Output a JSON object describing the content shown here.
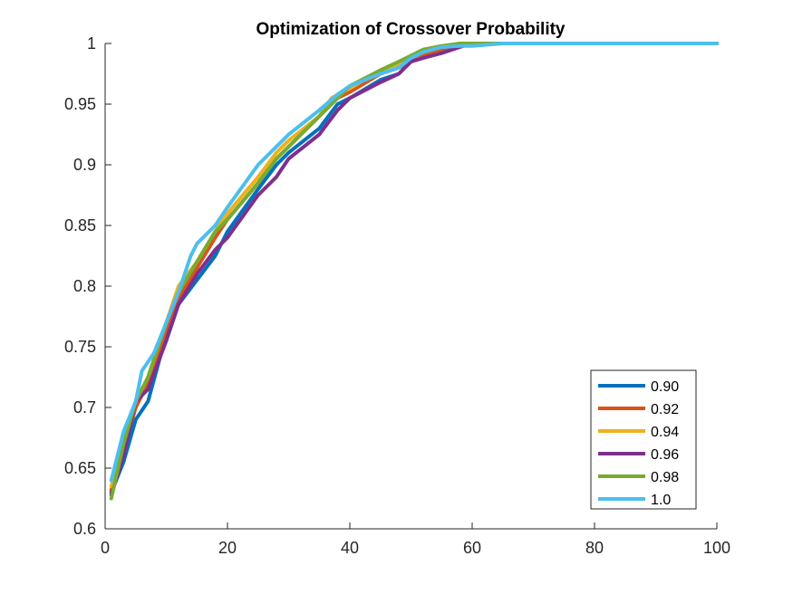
{
  "chart_data": {
    "type": "line",
    "title": "Optimization of Crossover Probability",
    "xlabel": "",
    "ylabel": "",
    "xlim": [
      0,
      100
    ],
    "ylim": [
      0.6,
      1
    ],
    "xticks": [
      0,
      20,
      40,
      60,
      80,
      100
    ],
    "xtick_labels": [
      "0",
      "20",
      "40",
      "60",
      "80",
      "100"
    ],
    "yticks": [
      0.6,
      0.65,
      0.7,
      0.75,
      0.8,
      0.85,
      0.9,
      0.95,
      1
    ],
    "ytick_labels": [
      "0.6",
      "0.65",
      "0.7",
      "0.75",
      "0.8",
      "0.85",
      "0.9",
      "0.95",
      "1"
    ],
    "grid": false,
    "legend_position": "bottom-right",
    "series": [
      {
        "name": "0.90",
        "color": "#0072BD",
        "x": [
          1,
          3,
          5,
          7,
          10,
          12,
          15,
          18,
          20,
          25,
          28,
          30,
          35,
          38,
          40,
          45,
          48,
          50,
          52,
          55,
          58,
          60,
          65,
          70,
          80,
          90,
          100
        ],
        "y": [
          0.63,
          0.655,
          0.69,
          0.705,
          0.76,
          0.785,
          0.805,
          0.825,
          0.845,
          0.88,
          0.9,
          0.91,
          0.93,
          0.95,
          0.955,
          0.97,
          0.975,
          0.985,
          0.99,
          0.995,
          1,
          1,
          1,
          1,
          1,
          1,
          1
        ]
      },
      {
        "name": "0.92",
        "color": "#D95319",
        "x": [
          1,
          3,
          5,
          7,
          10,
          12,
          15,
          18,
          20,
          25,
          28,
          30,
          35,
          38,
          40,
          45,
          48,
          50,
          52,
          55,
          58,
          60,
          65,
          70,
          80,
          90,
          100
        ],
        "y": [
          0.632,
          0.665,
          0.7,
          0.72,
          0.765,
          0.79,
          0.815,
          0.84,
          0.855,
          0.885,
          0.905,
          0.915,
          0.94,
          0.955,
          0.96,
          0.975,
          0.98,
          0.985,
          0.99,
          0.995,
          0.998,
          1,
          1,
          1,
          1,
          1,
          1
        ]
      },
      {
        "name": "0.94",
        "color": "#EDB120",
        "x": [
          1,
          3,
          5,
          7,
          10,
          12,
          15,
          18,
          20,
          25,
          28,
          30,
          35,
          37,
          40,
          45,
          48,
          50,
          52,
          55,
          58,
          60,
          65,
          70,
          80,
          90,
          100
        ],
        "y": [
          0.635,
          0.67,
          0.705,
          0.725,
          0.77,
          0.8,
          0.82,
          0.845,
          0.86,
          0.89,
          0.91,
          0.92,
          0.94,
          0.955,
          0.963,
          0.978,
          0.983,
          0.988,
          0.993,
          0.997,
          1,
          1,
          1,
          1,
          1,
          1,
          1
        ]
      },
      {
        "name": "0.96",
        "color": "#7E2F8E",
        "x": [
          1,
          3,
          5,
          7,
          10,
          12,
          15,
          18,
          20,
          25,
          28,
          30,
          35,
          38,
          40,
          45,
          48,
          50,
          52,
          55,
          58,
          60,
          65,
          70,
          80,
          90,
          100
        ],
        "y": [
          0.628,
          0.66,
          0.705,
          0.715,
          0.755,
          0.785,
          0.81,
          0.83,
          0.84,
          0.875,
          0.89,
          0.905,
          0.925,
          0.945,
          0.955,
          0.968,
          0.975,
          0.985,
          0.988,
          0.992,
          0.997,
          1,
          1,
          1,
          1,
          1,
          1
        ]
      },
      {
        "name": "0.98",
        "color": "#77AC30",
        "x": [
          1,
          3,
          5,
          7,
          10,
          12,
          15,
          18,
          20,
          25,
          28,
          30,
          35,
          38,
          40,
          45,
          48,
          50,
          52,
          55,
          58,
          60,
          65,
          70,
          80,
          90,
          100
        ],
        "y": [
          0.625,
          0.67,
          0.705,
          0.725,
          0.77,
          0.795,
          0.82,
          0.845,
          0.855,
          0.885,
          0.905,
          0.915,
          0.94,
          0.955,
          0.965,
          0.978,
          0.985,
          0.99,
          0.995,
          0.998,
          1,
          1,
          1,
          1,
          1,
          1,
          1
        ]
      },
      {
        "name": "1.0",
        "color": "#4DBEEE",
        "x": [
          1,
          3,
          5,
          6,
          8,
          10,
          12,
          14,
          15,
          18,
          20,
          25,
          28,
          30,
          35,
          38,
          40,
          45,
          48,
          50,
          52,
          55,
          58,
          60,
          65,
          70,
          80,
          90,
          100
        ],
        "y": [
          0.64,
          0.68,
          0.705,
          0.73,
          0.745,
          0.77,
          0.795,
          0.825,
          0.835,
          0.85,
          0.865,
          0.9,
          0.915,
          0.925,
          0.945,
          0.958,
          0.965,
          0.975,
          0.98,
          0.988,
          0.993,
          0.997,
          0.998,
          0.998,
          1,
          1,
          1,
          1,
          1
        ]
      }
    ]
  }
}
